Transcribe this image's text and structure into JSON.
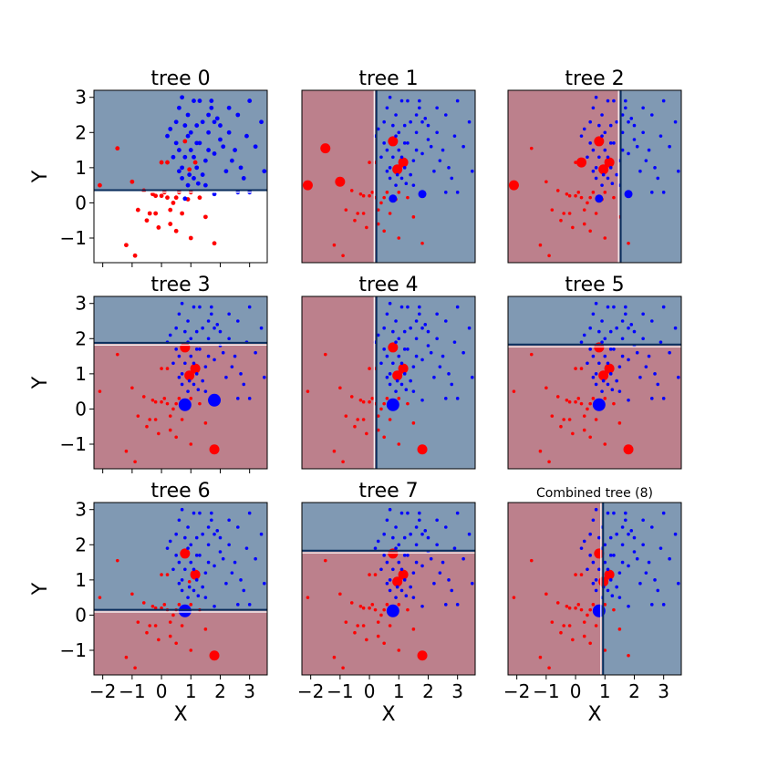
{
  "figure": {
    "xlabel": "X",
    "ylabel": "Y"
  },
  "colors": {
    "red_region": "#bc808c",
    "blue_region": "#8099b3",
    "red_point": "#ff0000",
    "blue_point": "#0000ff",
    "line_dark": "#0a2d5c",
    "line_light": "#ffffff"
  },
  "chart_data": [
    {
      "type": "scatter",
      "title": "tree 0",
      "split_axis": "y",
      "threshold": 0.33,
      "below_region": "white",
      "above_region": "blue",
      "xlim": [
        -2.3,
        3.6
      ],
      "ylim": [
        -1.7,
        3.2
      ],
      "xticks": [
        -2,
        -1,
        0,
        1,
        2,
        3
      ],
      "yticks": [
        -1,
        0,
        1,
        2,
        3
      ],
      "xlabel": "",
      "ylabel": "Y"
    },
    {
      "type": "scatter",
      "title": "tree 1",
      "split_axis": "x",
      "threshold": 0.2,
      "below_region": "red",
      "above_region": "blue",
      "xlim": [
        -2.3,
        3.6
      ],
      "ylim": [
        -1.7,
        3.2
      ],
      "xlabel": "",
      "ylabel": ""
    },
    {
      "type": "scatter",
      "title": "tree 2",
      "split_axis": "x",
      "threshold": 1.5,
      "below_region": "red",
      "above_region": "blue",
      "xlim": [
        -2.3,
        3.6
      ],
      "ylim": [
        -1.7,
        3.2
      ],
      "xlabel": "",
      "ylabel": ""
    },
    {
      "type": "scatter",
      "title": "tree 3",
      "split_axis": "y",
      "threshold": 1.85,
      "below_region": "red",
      "above_region": "blue",
      "xlim": [
        -2.3,
        3.6
      ],
      "ylim": [
        -1.7,
        3.2
      ],
      "xticks": [
        -2,
        -1,
        0,
        1,
        2,
        3
      ],
      "yticks": [
        -1,
        0,
        1,
        2,
        3
      ],
      "xlabel": "",
      "ylabel": "Y"
    },
    {
      "type": "scatter",
      "title": "tree 4",
      "split_axis": "x",
      "threshold": 0.2,
      "below_region": "red",
      "above_region": "blue",
      "xlim": [
        -2.3,
        3.6
      ],
      "ylim": [
        -1.7,
        3.2
      ],
      "xlabel": "",
      "ylabel": ""
    },
    {
      "type": "scatter",
      "title": "tree 5",
      "split_axis": "y",
      "threshold": 1.8,
      "below_region": "red",
      "above_region": "blue",
      "xlim": [
        -2.3,
        3.6
      ],
      "ylim": [
        -1.7,
        3.2
      ],
      "xlabel": "",
      "ylabel": ""
    },
    {
      "type": "scatter",
      "title": "tree 6",
      "split_axis": "y",
      "threshold": 0.12,
      "below_region": "red",
      "above_region": "blue",
      "xlim": [
        -2.3,
        3.6
      ],
      "ylim": [
        -1.7,
        3.2
      ],
      "xticks": [
        -2,
        -1,
        0,
        1,
        2,
        3
      ],
      "yticks": [
        -1,
        0,
        1,
        2,
        3
      ],
      "xlabel": "X",
      "ylabel": "Y"
    },
    {
      "type": "scatter",
      "title": "tree 7",
      "split_axis": "y",
      "threshold": 1.8,
      "below_region": "red",
      "above_region": "blue",
      "xlim": [
        -2.3,
        3.6
      ],
      "ylim": [
        -1.7,
        3.2
      ],
      "xticks": [
        -2,
        -1,
        0,
        1,
        2,
        3
      ],
      "xlabel": "X",
      "ylabel": ""
    },
    {
      "type": "scatter",
      "title": "Combined tree (8)",
      "split_axis": "x",
      "threshold": 0.9,
      "below_region": "red",
      "above_region": "blue",
      "xlim": [
        -2.3,
        3.6
      ],
      "ylim": [
        -1.7,
        3.2
      ],
      "xticks": [
        -2,
        -1,
        0,
        1,
        2,
        3
      ],
      "xlabel": "X",
      "ylabel": ""
    }
  ],
  "points": {
    "red": [
      [
        -2.1,
        0.5
      ],
      [
        -1.5,
        1.55
      ],
      [
        -1.0,
        0.6
      ],
      [
        -0.8,
        -0.2
      ],
      [
        -1.2,
        -1.2
      ],
      [
        -0.9,
        -1.5
      ],
      [
        -0.6,
        0.35
      ],
      [
        -0.5,
        -0.5
      ],
      [
        -0.3,
        0.25
      ],
      [
        -0.2,
        0.2
      ],
      [
        0.0,
        0.2
      ],
      [
        0.1,
        0.3
      ],
      [
        0.2,
        0.15
      ],
      [
        -0.2,
        -0.3
      ],
      [
        -0.1,
        -0.7
      ],
      [
        0.3,
        -0.6
      ],
      [
        0.0,
        1.15
      ],
      [
        0.2,
        1.15
      ],
      [
        0.5,
        0.15
      ],
      [
        0.6,
        0.3
      ],
      [
        0.7,
        -0.3
      ],
      [
        0.5,
        -0.8
      ],
      [
        0.8,
        1.75
      ],
      [
        0.95,
        0.95
      ],
      [
        1.15,
        1.15
      ],
      [
        1.0,
        -1.0
      ],
      [
        1.3,
        0.15
      ],
      [
        1.8,
        -1.15
      ],
      [
        1.5,
        -0.4
      ],
      [
        1.0,
        0.3
      ],
      [
        0.3,
        -0.2
      ],
      [
        0.9,
        0.1
      ],
      [
        -0.4,
        -0.3
      ],
      [
        0.4,
        0.0
      ]
    ],
    "blue": [
      [
        0.8,
        0.12
      ],
      [
        1.8,
        0.25
      ],
      [
        1.4,
        0.8
      ],
      [
        1.6,
        1.5
      ],
      [
        1.8,
        2.3
      ],
      [
        2.0,
        1.8
      ],
      [
        2.5,
        1.5
      ],
      [
        2.8,
        0.7
      ],
      [
        3.0,
        2.9
      ],
      [
        3.4,
        2.3
      ],
      [
        2.6,
        2.5
      ],
      [
        2.3,
        2.0
      ],
      [
        1.9,
        2.4
      ],
      [
        1.7,
        2.7
      ],
      [
        2.2,
        0.9
      ],
      [
        0.9,
        2.5
      ],
      [
        1.0,
        2.0
      ],
      [
        1.2,
        2.2
      ],
      [
        1.3,
        1.7
      ],
      [
        1.6,
        2.0
      ],
      [
        0.7,
        1.0
      ],
      [
        0.8,
        1.3
      ],
      [
        1.0,
        1.5
      ],
      [
        1.1,
        0.7
      ],
      [
        1.2,
        1.0
      ],
      [
        0.6,
        1.5
      ],
      [
        0.5,
        2.3
      ],
      [
        0.6,
        2.7
      ],
      [
        0.7,
        3.0
      ],
      [
        1.3,
        2.9
      ],
      [
        1.6,
        2.5
      ],
      [
        2.0,
        2.2
      ],
      [
        2.4,
        1.2
      ],
      [
        2.7,
        1.0
      ],
      [
        3.2,
        1.6
      ],
      [
        3.0,
        0.3
      ],
      [
        2.1,
        1.6
      ],
      [
        1.5,
        1.2
      ],
      [
        1.4,
        2.3
      ],
      [
        1.1,
        2.9
      ],
      [
        0.2,
        1.9
      ],
      [
        0.3,
        2.1
      ],
      [
        0.4,
        1.3
      ],
      [
        0.9,
        0.5
      ],
      [
        1.5,
        0.5
      ],
      [
        2.6,
        0.3
      ],
      [
        3.5,
        0.9
      ],
      [
        1.8,
        1.4
      ],
      [
        0.95,
        0.8
      ],
      [
        1.1,
        1.3
      ],
      [
        1.25,
        0.55
      ],
      [
        0.7,
        0.7
      ],
      [
        0.6,
        0.9
      ],
      [
        0.9,
        1.9
      ],
      [
        2.9,
        1.9
      ],
      [
        2.3,
        2.7
      ],
      [
        1.7,
        2.9
      ],
      [
        0.8,
        2.2
      ],
      [
        0.5,
        1.7
      ],
      [
        1.2,
        1.7
      ]
    ]
  },
  "weights": {
    "t0": {
      "red": [],
      "blue": []
    },
    "t1": {
      "red_big": [
        [
          -2.1,
          0.5
        ],
        [
          -1.5,
          1.55
        ],
        [
          -1.0,
          0.6
        ],
        [
          0.8,
          1.75
        ],
        [
          0.95,
          0.95
        ],
        [
          1.15,
          1.15
        ]
      ],
      "blue_big": [
        [
          0.8,
          0.12
        ],
        [
          1.8,
          0.25
        ]
      ]
    },
    "t2": {
      "red_big": [
        [
          0.8,
          1.75
        ],
        [
          0.95,
          0.95
        ],
        [
          1.15,
          1.15
        ],
        [
          -2.1,
          0.5
        ],
        [
          0.2,
          1.15
        ]
      ],
      "blue_big": [
        [
          0.8,
          0.12
        ],
        [
          1.8,
          0.25
        ]
      ]
    },
    "t3": {
      "red_big": [
        [
          0.8,
          1.75
        ],
        [
          1.15,
          1.15
        ],
        [
          0.95,
          0.95
        ],
        [
          1.8,
          -1.15
        ]
      ],
      "blue_big": [
        [
          0.8,
          0.12
        ],
        [
          1.8,
          0.25
        ]
      ]
    },
    "t4": {
      "red_big": [
        [
          0.8,
          1.75
        ],
        [
          1.15,
          1.15
        ],
        [
          0.95,
          0.95
        ],
        [
          1.8,
          -1.15
        ]
      ],
      "blue_big": [
        [
          0.8,
          0.12
        ]
      ]
    },
    "t5": {
      "red_big": [
        [
          0.8,
          1.75
        ],
        [
          1.15,
          1.15
        ],
        [
          0.95,
          0.95
        ],
        [
          1.8,
          -1.15
        ]
      ],
      "blue_big": [
        [
          0.8,
          0.12
        ]
      ]
    },
    "t6": {
      "red_big": [
        [
          0.8,
          1.75
        ],
        [
          1.15,
          1.15
        ],
        [
          1.8,
          -1.15
        ]
      ],
      "blue_big": [
        [
          0.8,
          0.12
        ]
      ]
    },
    "t7": {
      "red_big": [
        [
          0.8,
          1.75
        ],
        [
          1.15,
          1.15
        ],
        [
          0.95,
          0.95
        ],
        [
          1.8,
          -1.15
        ]
      ],
      "blue_big": [
        [
          0.8,
          0.12
        ]
      ]
    },
    "t8": {
      "red_big": [
        [
          0.8,
          1.75
        ],
        [
          1.15,
          1.15
        ],
        [
          0.95,
          0.95
        ]
      ],
      "blue_big": [
        [
          0.8,
          0.12
        ]
      ]
    }
  }
}
